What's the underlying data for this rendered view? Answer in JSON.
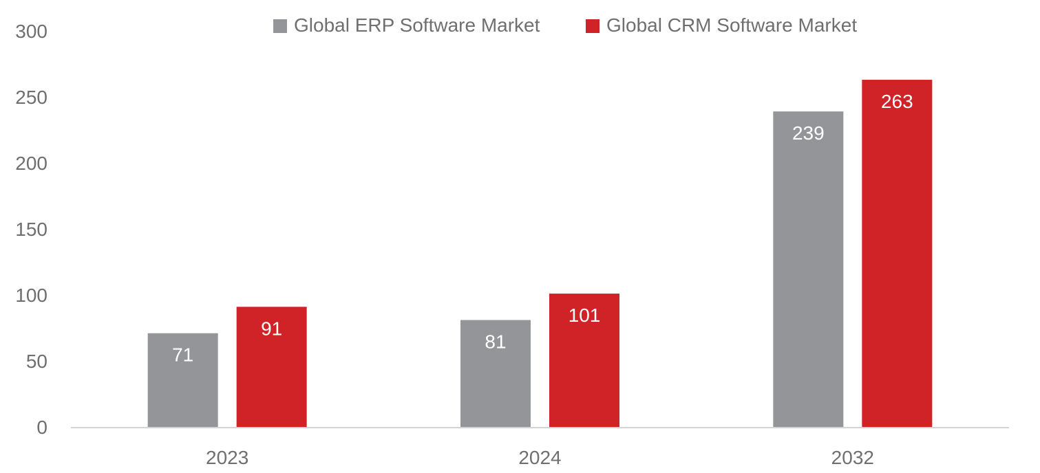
{
  "chart_data": {
    "type": "bar",
    "categories": [
      "2023",
      "2024",
      "2032"
    ],
    "series": [
      {
        "name": "Global ERP Software Market",
        "values": [
          71,
          81,
          239
        ],
        "color": "#939598"
      },
      {
        "name": "Global CRM Software Market",
        "values": [
          91,
          101,
          263
        ],
        "color": "#cf2327"
      }
    ],
    "ylim": [
      0,
      300
    ],
    "yticks": [
      0,
      50,
      100,
      150,
      200,
      250,
      300
    ],
    "grid": false,
    "legend_position": "top-center",
    "axis_color": "#d4d4d4"
  }
}
